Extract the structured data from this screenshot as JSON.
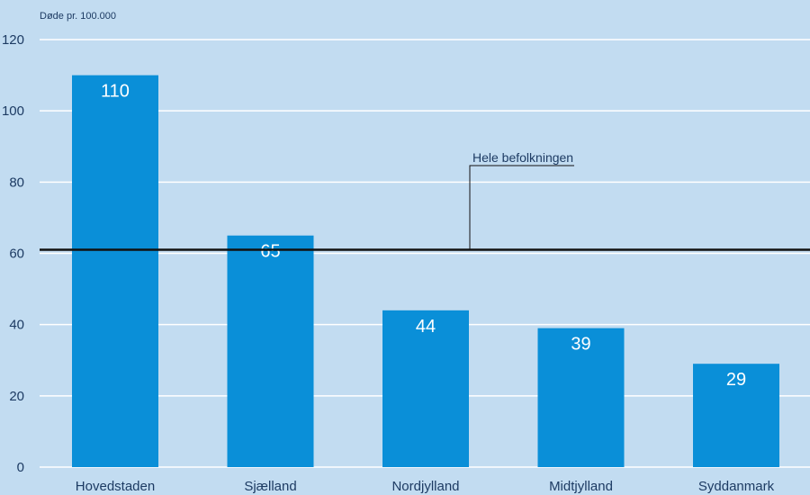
{
  "chart_data": {
    "type": "bar",
    "ylabel": "Døde pr. 100.000",
    "categories": [
      "Hovedstaden",
      "Sjælland",
      "Nordjylland",
      "Midtjylland",
      "Syddanmark"
    ],
    "values": [
      110,
      65,
      44,
      39,
      29
    ],
    "value_labels": [
      "110",
      "65",
      "44",
      "39",
      "29"
    ],
    "ylim": [
      0,
      120
    ],
    "yticks": [
      0,
      20,
      40,
      60,
      80,
      100,
      120
    ],
    "grid": true,
    "reference_line": {
      "label": "Hele befolkningen",
      "value": 61
    },
    "colors": {
      "background": "#c2dcf1",
      "bar": "#0a8fd8",
      "grid": "#ffffff",
      "reference": "#111111",
      "text": "#1d3b63"
    }
  }
}
